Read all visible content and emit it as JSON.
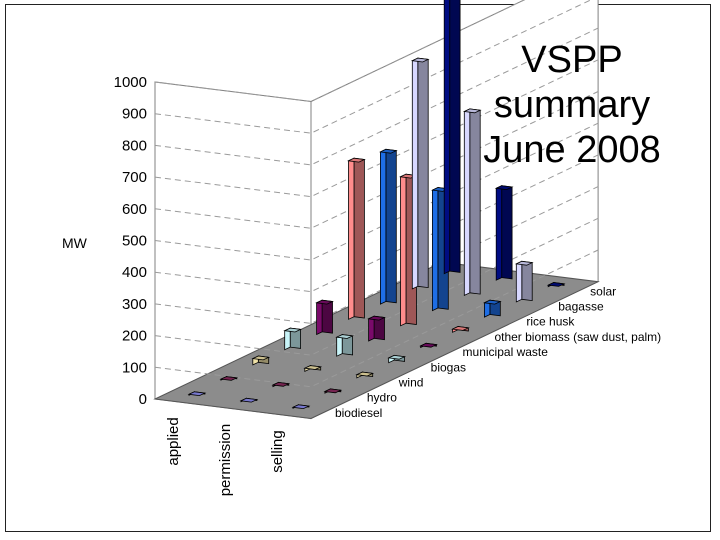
{
  "chart_data": {
    "type": "bar",
    "title_lines": [
      "VSPP",
      "summary",
      "June 2008"
    ],
    "ylabel": "MW",
    "ylim": [
      0,
      1000
    ],
    "yticks": [
      0,
      100,
      200,
      300,
      400,
      500,
      600,
      700,
      800,
      900,
      1000
    ],
    "categories": [
      "applied",
      "permission",
      "selling"
    ],
    "grid": true,
    "series": [
      {
        "name": "biodiesel",
        "color": "#8c8cf0",
        "values": [
          3,
          3,
          3
        ]
      },
      {
        "name": "hydro",
        "color": "#8a2a5e",
        "values": [
          3,
          5,
          5
        ]
      },
      {
        "name": "wind",
        "color": "#f0e2a8",
        "values": [
          20,
          10,
          10
        ]
      },
      {
        "name": "biogas",
        "color": "#c8f4f8",
        "values": [
          60,
          60,
          15
        ]
      },
      {
        "name": "municipal waste",
        "color": "#7a0a6a",
        "values": [
          100,
          70,
          5
        ]
      },
      {
        "name": "other biomass (saw dust, palm)",
        "color": "#ff8c8c",
        "values": [
          500,
          470,
          10
        ]
      },
      {
        "name": "rice husk",
        "color": "#1e6ee6",
        "values": [
          480,
          380,
          45
        ]
      },
      {
        "name": "bagasse",
        "color": "#d8d8ff",
        "values": [
          720,
          580,
          120
        ]
      },
      {
        "name": "solar",
        "color": "#000c82",
        "values": [
          1000,
          290,
          5
        ]
      }
    ]
  }
}
